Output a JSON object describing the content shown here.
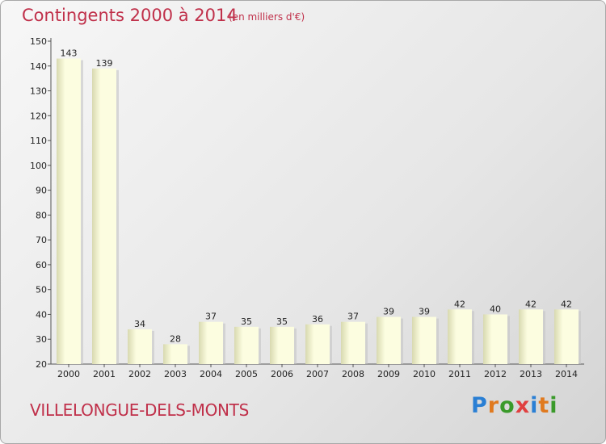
{
  "header": {
    "title": "Contingents 2000 à 2014",
    "subtitle": "(en milliers d'€)"
  },
  "footer": {
    "commune": "VILLELONGUE-DELS-MONTS",
    "brand": "Proxiti",
    "brand_colors": [
      "#2a7fd4",
      "#e07a1f",
      "#3a9a2a",
      "#e04040",
      "#2a7fd4",
      "#e07a1f",
      "#3a9a2a"
    ]
  },
  "colors": {
    "title": "#c0304a",
    "bar_light": "#fcfde0",
    "bar_dark": "#d8d9b0",
    "bar_shadow": "#c4c4c4",
    "axis": "#555555",
    "grid": "#cccccc"
  },
  "chart_data": {
    "type": "bar",
    "title": "Contingents 2000 à 2014",
    "subtitle": "(en milliers d'€)",
    "categories": [
      "2000",
      "2001",
      "2002",
      "2003",
      "2004",
      "2005",
      "2006",
      "2007",
      "2008",
      "2009",
      "2010",
      "2011",
      "2012",
      "2013",
      "2014"
    ],
    "values": [
      143,
      139,
      34,
      28,
      37,
      35,
      35,
      36,
      37,
      39,
      39,
      42,
      40,
      42,
      42
    ],
    "ylim": [
      20,
      150
    ],
    "yticks": [
      20,
      30,
      40,
      50,
      60,
      70,
      80,
      90,
      100,
      110,
      120,
      130,
      140,
      150
    ],
    "xlabel": "",
    "ylabel": "",
    "grid": false,
    "legend": "none"
  }
}
